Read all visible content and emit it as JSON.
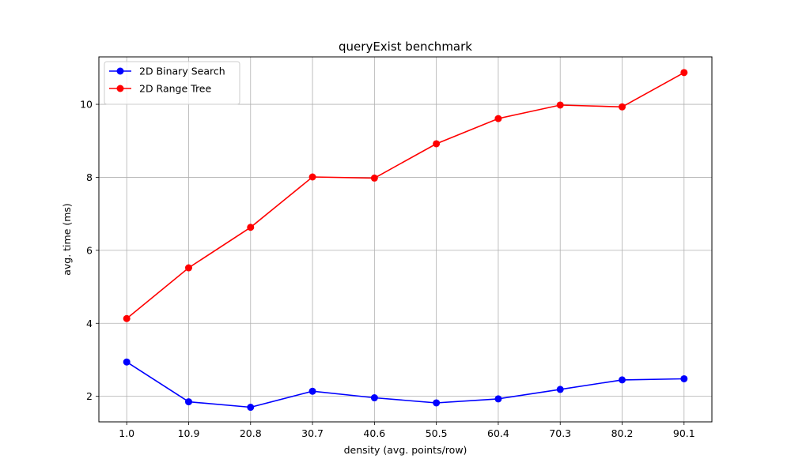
{
  "chart_data": {
    "type": "line",
    "title": "queryExist benchmark",
    "xlabel": "density (avg. points/row)",
    "ylabel": "avg. time (ms)",
    "categories": [
      "1.0",
      "10.9",
      "20.8",
      "30.7",
      "40.6",
      "50.5",
      "60.4",
      "70.3",
      "80.2",
      "90.1"
    ],
    "ylim": [
      1.3,
      11.3
    ],
    "yticks": [
      "2",
      "4",
      "6",
      "8",
      "10"
    ],
    "grid": true,
    "legend_position": "top-left",
    "series": [
      {
        "name": "2D Binary Search",
        "color": "#0000ff",
        "values": [
          2.94,
          1.85,
          1.7,
          2.14,
          1.96,
          1.82,
          1.93,
          2.19,
          2.45,
          2.48
        ]
      },
      {
        "name": "2D Range Tree",
        "color": "#ff0000",
        "values": [
          4.13,
          5.52,
          6.63,
          8.01,
          7.98,
          8.92,
          9.61,
          9.98,
          9.93,
          10.87
        ]
      }
    ]
  }
}
